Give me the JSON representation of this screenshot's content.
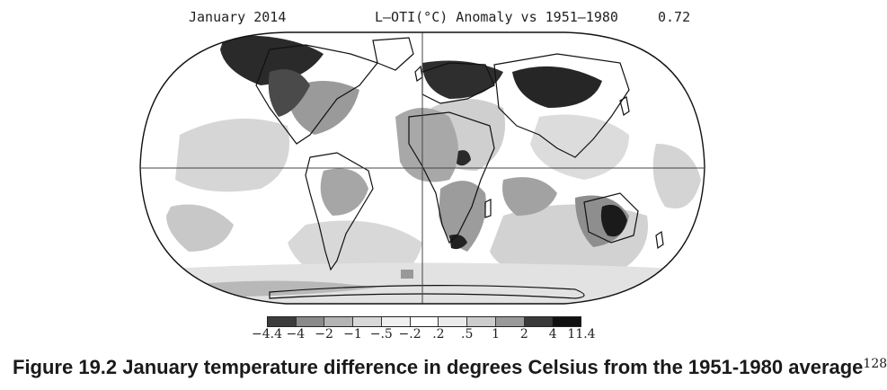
{
  "header": {
    "left": "January 2014",
    "center": "L-OTI(°C) Anomaly vs 1951-1980",
    "right": "0.72"
  },
  "legend": {
    "ticks": [
      "-4.4",
      "-4",
      "-2",
      "-1",
      "-.5",
      "-.2",
      ".2",
      ".5",
      "1",
      "2",
      "4",
      "11.4"
    ],
    "colors": [
      "#3c3c3c",
      "#8a8a8a",
      "#b4b4b4",
      "#d8d8d8",
      "#f0f0f0",
      "#ffffff",
      "#ebebeb",
      "#cdcdcd",
      "#9a9a9a",
      "#3a3a3a",
      "#111111"
    ]
  },
  "caption": {
    "text": "Figure 19.2 January temperature difference in degrees Celsius from the 1951-1980 average",
    "ref": "128"
  },
  "map": {
    "projection": "Robinson"
  }
}
